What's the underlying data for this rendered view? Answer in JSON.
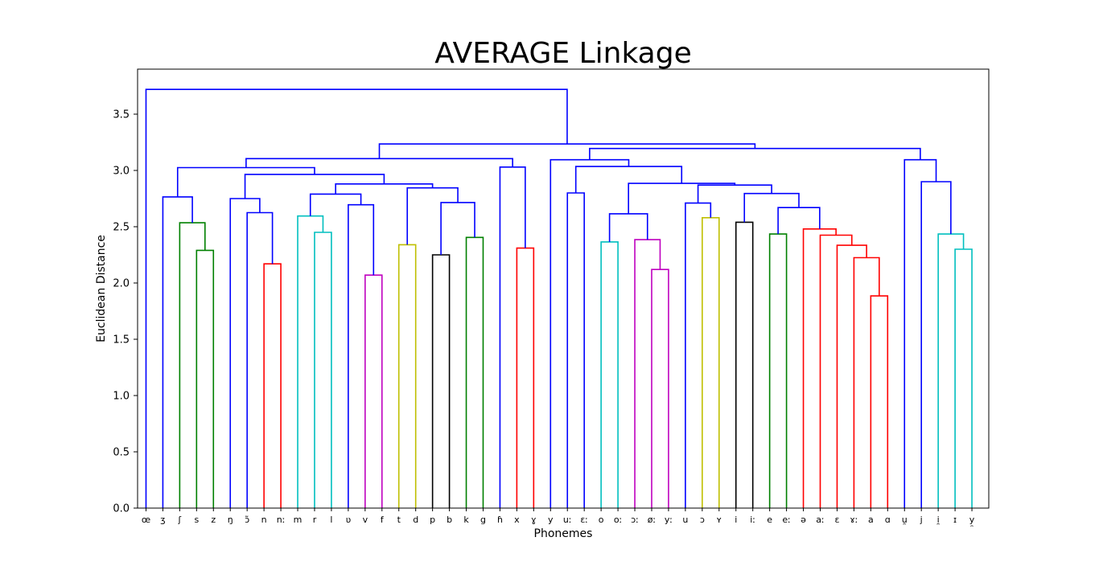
{
  "chart_data": {
    "type": "dendrogram",
    "title": "AVERAGE Linkage",
    "xlabel": "Phonemes",
    "ylabel": "Euclidean Distance",
    "ylim": [
      0,
      3.9
    ],
    "yticks": [
      "0.0",
      "0.5",
      "1.0",
      "1.5",
      "2.0",
      "2.5",
      "3.0",
      "3.5"
    ],
    "grid": false,
    "leaves": [
      "œ",
      "ʒ",
      "ʃ",
      "s",
      "z",
      "ŋ",
      "ɔ̃",
      "n",
      "nː",
      "m",
      "r",
      "l",
      "ʋ",
      "v",
      "f",
      "t",
      "d",
      "p",
      "b",
      "k",
      "g",
      "ɦ",
      "x",
      "ɣ",
      "y",
      "uː",
      "ɛː",
      "o",
      "oː",
      "ɔː",
      "øː",
      "yː",
      "u",
      "ɔ",
      "ʏ",
      "i",
      "iː",
      "e",
      "eː",
      "ə",
      "aː",
      "ɛ",
      "ɤː",
      "a",
      "ɑ",
      "u̯",
      "j",
      "i̯",
      "ɪ",
      "y̯"
    ],
    "merges": [
      {
        "left": "L3",
        "right": "L4",
        "height": 2.29,
        "color": "#008000"
      },
      {
        "left": "L2",
        "right": "N0",
        "height": 2.535,
        "color": "#008000"
      },
      {
        "left": "L1",
        "right": "N1",
        "height": 2.765,
        "color": "#0000ff"
      },
      {
        "left": "L7",
        "right": "L8",
        "height": 2.17,
        "color": "#ff0000"
      },
      {
        "left": "L6",
        "right": "N3",
        "height": 2.625,
        "color": "#0000ff"
      },
      {
        "left": "L5",
        "right": "N4",
        "height": 2.75,
        "color": "#0000ff"
      },
      {
        "left": "L10",
        "right": "L11",
        "height": 2.45,
        "color": "#00bfbf"
      },
      {
        "left": "L9",
        "right": "N6",
        "height": 2.595,
        "color": "#00bfbf"
      },
      {
        "left": "L13",
        "right": "L14",
        "height": 2.07,
        "color": "#bf00bf"
      },
      {
        "left": "L12",
        "right": "N8",
        "height": 2.695,
        "color": "#0000ff"
      },
      {
        "left": "N7",
        "right": "N9",
        "height": 2.79,
        "color": "#0000ff"
      },
      {
        "left": "L15",
        "right": "L16",
        "height": 2.34,
        "color": "#bfbf00"
      },
      {
        "left": "L17",
        "right": "L18",
        "height": 2.25,
        "color": "#000000"
      },
      {
        "left": "L19",
        "right": "L20",
        "height": 2.405,
        "color": "#008000"
      },
      {
        "left": "N12",
        "right": "N13",
        "height": 2.715,
        "color": "#0000ff"
      },
      {
        "left": "N11",
        "right": "N14",
        "height": 2.845,
        "color": "#0000ff"
      },
      {
        "left": "N10",
        "right": "N15",
        "height": 2.88,
        "color": "#0000ff"
      },
      {
        "left": "N5",
        "right": "N16",
        "height": 2.965,
        "color": "#0000ff"
      },
      {
        "left": "N2",
        "right": "N17",
        "height": 3.025,
        "color": "#0000ff"
      },
      {
        "left": "L22",
        "right": "L23",
        "height": 2.31,
        "color": "#ff0000"
      },
      {
        "left": "L21",
        "right": "N19",
        "height": 3.03,
        "color": "#0000ff"
      },
      {
        "left": "N18",
        "right": "N20",
        "height": 3.105,
        "color": "#0000ff"
      },
      {
        "left": "L25",
        "right": "L26",
        "height": 2.8,
        "color": "#0000ff"
      },
      {
        "left": "L27",
        "right": "L28",
        "height": 2.365,
        "color": "#00bfbf"
      },
      {
        "left": "L30",
        "right": "L31",
        "height": 2.12,
        "color": "#bf00bf"
      },
      {
        "left": "L29",
        "right": "N24",
        "height": 2.385,
        "color": "#bf00bf"
      },
      {
        "left": "N23",
        "right": "N25",
        "height": 2.615,
        "color": "#0000ff"
      },
      {
        "left": "L33",
        "right": "L34",
        "height": 2.58,
        "color": "#bfbf00"
      },
      {
        "left": "L32",
        "right": "N27",
        "height": 2.71,
        "color": "#0000ff"
      },
      {
        "left": "L35",
        "right": "L36",
        "height": 2.54,
        "color": "#000000"
      },
      {
        "left": "L37",
        "right": "L38",
        "height": 2.435,
        "color": "#008000"
      },
      {
        "left": "L43",
        "right": "L44",
        "height": 1.885,
        "color": "#ff0000"
      },
      {
        "left": "L42",
        "right": "N31",
        "height": 2.225,
        "color": "#ff0000"
      },
      {
        "left": "L41",
        "right": "N32",
        "height": 2.335,
        "color": "#ff0000"
      },
      {
        "left": "L40",
        "right": "N33",
        "height": 2.425,
        "color": "#ff0000"
      },
      {
        "left": "L39",
        "right": "N34",
        "height": 2.48,
        "color": "#ff0000"
      },
      {
        "left": "N30",
        "right": "N35",
        "height": 2.67,
        "color": "#0000ff"
      },
      {
        "left": "N29",
        "right": "N36",
        "height": 2.795,
        "color": "#0000ff"
      },
      {
        "left": "N28",
        "right": "N37",
        "height": 2.87,
        "color": "#0000ff"
      },
      {
        "left": "N26",
        "right": "N38",
        "height": 2.885,
        "color": "#0000ff"
      },
      {
        "left": "N22",
        "right": "N39",
        "height": 3.035,
        "color": "#0000ff"
      },
      {
        "left": "L24",
        "right": "N40",
        "height": 3.095,
        "color": "#0000ff"
      },
      {
        "left": "L48",
        "right": "L49",
        "height": 2.3,
        "color": "#00bfbf"
      },
      {
        "left": "L47",
        "right": "N42",
        "height": 2.435,
        "color": "#00bfbf"
      },
      {
        "left": "L46",
        "right": "N43",
        "height": 2.9,
        "color": "#0000ff"
      },
      {
        "left": "L45",
        "right": "N44",
        "height": 3.095,
        "color": "#0000ff"
      },
      {
        "left": "N41",
        "right": "N45",
        "height": 3.195,
        "color": "#0000ff"
      },
      {
        "left": "N21",
        "right": "N46",
        "height": 3.235,
        "color": "#0000ff"
      },
      {
        "left": "L0",
        "right": "N47",
        "height": 3.72,
        "color": "#0000ff"
      }
    ]
  }
}
